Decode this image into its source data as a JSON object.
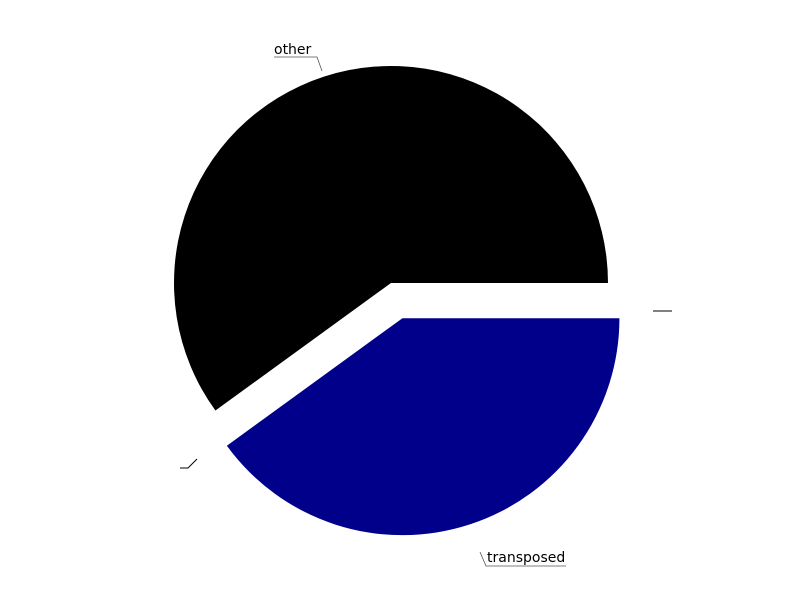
{
  "chart_data": {
    "type": "pie",
    "title": "",
    "slices": [
      {
        "label": "other",
        "value": 60,
        "color": "#000000",
        "exploded": false
      },
      {
        "label": "transposed",
        "value": 40,
        "color": "#00008b",
        "exploded": true
      },
      {
        "label": "",
        "value": 0,
        "color": "#000000",
        "exploded": false
      },
      {
        "label": "",
        "value": 0,
        "color": "#000000",
        "exploded": false
      }
    ],
    "legend": "none"
  }
}
